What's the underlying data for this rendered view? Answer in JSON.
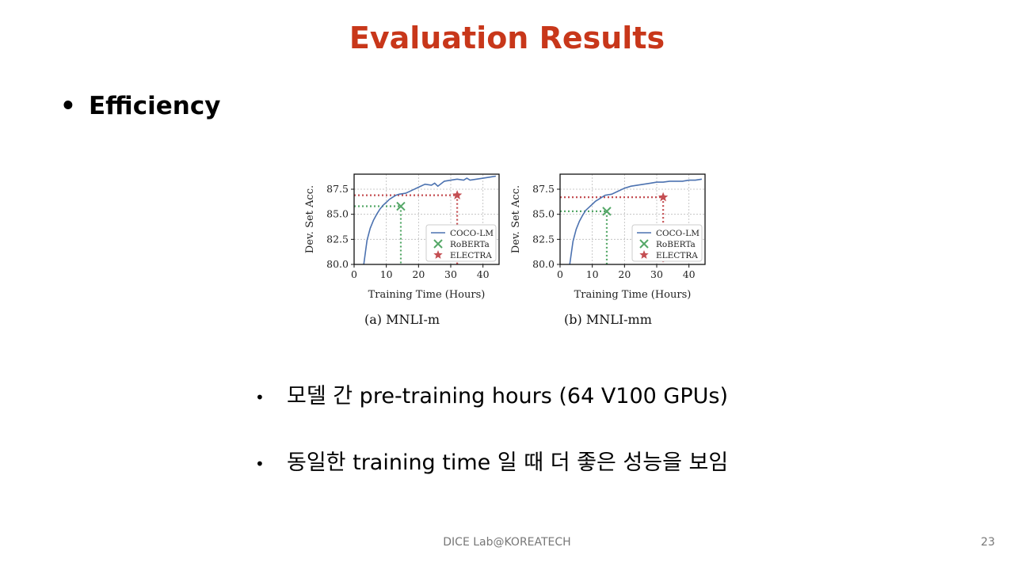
{
  "slide": {
    "title": "Evaluation Results",
    "bullet": "Efficiency",
    "sub_bullets": [
      "모델 간 pre-training hours (64 V100 GPUs)",
      "동일한 training time 일 때 더 좋은 성능을 보임"
    ],
    "footer": "DICE Lab@KOREATECH",
    "page_number": "23"
  },
  "colors": {
    "title": "#c8371a",
    "coco": "#4c72b0",
    "roberta": "#55a868",
    "electra": "#c44e52"
  },
  "chart_data": [
    {
      "type": "line",
      "caption": "(a) MNLI-m",
      "xlabel": "Training Time (Hours)",
      "ylabel": "Dev. Set Acc.",
      "xlim": [
        0,
        45
      ],
      "ylim": [
        80.0,
        89.0
      ],
      "xticks": [
        0,
        10,
        20,
        30,
        40
      ],
      "yticks": [
        "80.0",
        "82.5",
        "85.0",
        "87.5"
      ],
      "grid": true,
      "legend_position": "lower-right",
      "legend": [
        "COCO-LM",
        "RoBERTa",
        "ELECTRA"
      ],
      "series": [
        {
          "name": "COCO-LM",
          "x": [
            3,
            4,
            5,
            6,
            7,
            8,
            9,
            10,
            11,
            12,
            13,
            14,
            16,
            18,
            20,
            22,
            24,
            25,
            26,
            28,
            30,
            32,
            34,
            35,
            36,
            38,
            40,
            42,
            44
          ],
          "y": [
            80.0,
            82.4,
            83.6,
            84.4,
            85.0,
            85.5,
            85.9,
            86.2,
            86.5,
            86.7,
            86.9,
            87.0,
            87.1,
            87.4,
            87.7,
            88.0,
            87.9,
            88.1,
            87.8,
            88.3,
            88.4,
            88.5,
            88.4,
            88.6,
            88.4,
            88.5,
            88.6,
            88.7,
            88.8
          ]
        },
        {
          "name": "RoBERTa",
          "x": [
            14.5
          ],
          "y": [
            85.8
          ]
        },
        {
          "name": "ELECTRA",
          "x": [
            32
          ],
          "y": [
            86.9
          ]
        }
      ]
    },
    {
      "type": "line",
      "caption": "(b) MNLI-mm",
      "xlabel": "Training Time (Hours)",
      "ylabel": "Dev. Set Acc.",
      "xlim": [
        0,
        45
      ],
      "ylim": [
        80.0,
        89.0
      ],
      "xticks": [
        0,
        10,
        20,
        30,
        40
      ],
      "yticks": [
        "80.0",
        "82.5",
        "85.0",
        "87.5"
      ],
      "grid": true,
      "legend_position": "lower-right",
      "legend": [
        "COCO-LM",
        "RoBERTa",
        "ELECTRA"
      ],
      "series": [
        {
          "name": "COCO-LM",
          "x": [
            3,
            4,
            5,
            6,
            7,
            8,
            9,
            10,
            11,
            12,
            13,
            14,
            16,
            18,
            20,
            22,
            24,
            26,
            28,
            30,
            32,
            34,
            36,
            38,
            40,
            42,
            44
          ],
          "y": [
            80.0,
            82.3,
            83.5,
            84.3,
            84.9,
            85.4,
            85.7,
            86.0,
            86.3,
            86.5,
            86.7,
            86.9,
            87.0,
            87.3,
            87.6,
            87.8,
            87.9,
            88.0,
            88.1,
            88.2,
            88.2,
            88.3,
            88.3,
            88.3,
            88.4,
            88.4,
            88.5
          ]
        },
        {
          "name": "RoBERTa",
          "x": [
            14.5
          ],
          "y": [
            85.3
          ]
        },
        {
          "name": "ELECTRA",
          "x": [
            32
          ],
          "y": [
            86.7
          ]
        }
      ]
    }
  ]
}
